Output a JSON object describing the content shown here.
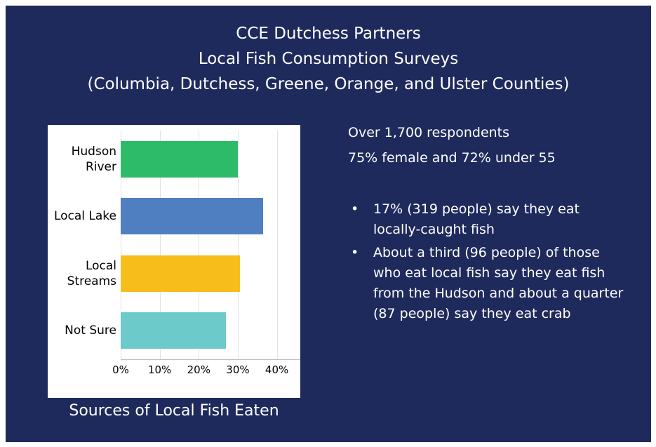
{
  "slide": {
    "title": [
      "CCE Dutchess Partners",
      "Local Fish Consumption Surveys",
      "(Columbia, Dutchess, Greene, Orange, and Ulster Counties)"
    ],
    "stats": [
      "Over 1,700 respondents",
      "75% female and 72% under 55"
    ],
    "bullets": [
      "17% (319 people) say they eat locally-caught fish",
      "About a third (96 people) of those who eat local fish say they eat fish from the Hudson and about a quarter (87 people) say they eat crab"
    ]
  },
  "chart_data": {
    "type": "hbar",
    "title": "Sources of Local Fish Eaten",
    "categories": [
      "Hudson River",
      "Local Lake",
      "Local Streams",
      "Not Sure"
    ],
    "values": [
      30,
      36.5,
      30.5,
      27
    ],
    "colors": [
      "#2dbb6a",
      "#4f7fc0",
      "#f7bd1a",
      "#6ccacb"
    ],
    "xlim": [
      0,
      46
    ],
    "xticks": [
      {
        "value": 0,
        "label": "0%"
      },
      {
        "value": 10,
        "label": "10%"
      },
      {
        "value": 20,
        "label": "20%"
      },
      {
        "value": 30,
        "label": "30%"
      },
      {
        "value": 40,
        "label": "40%"
      }
    ],
    "grid": true
  }
}
